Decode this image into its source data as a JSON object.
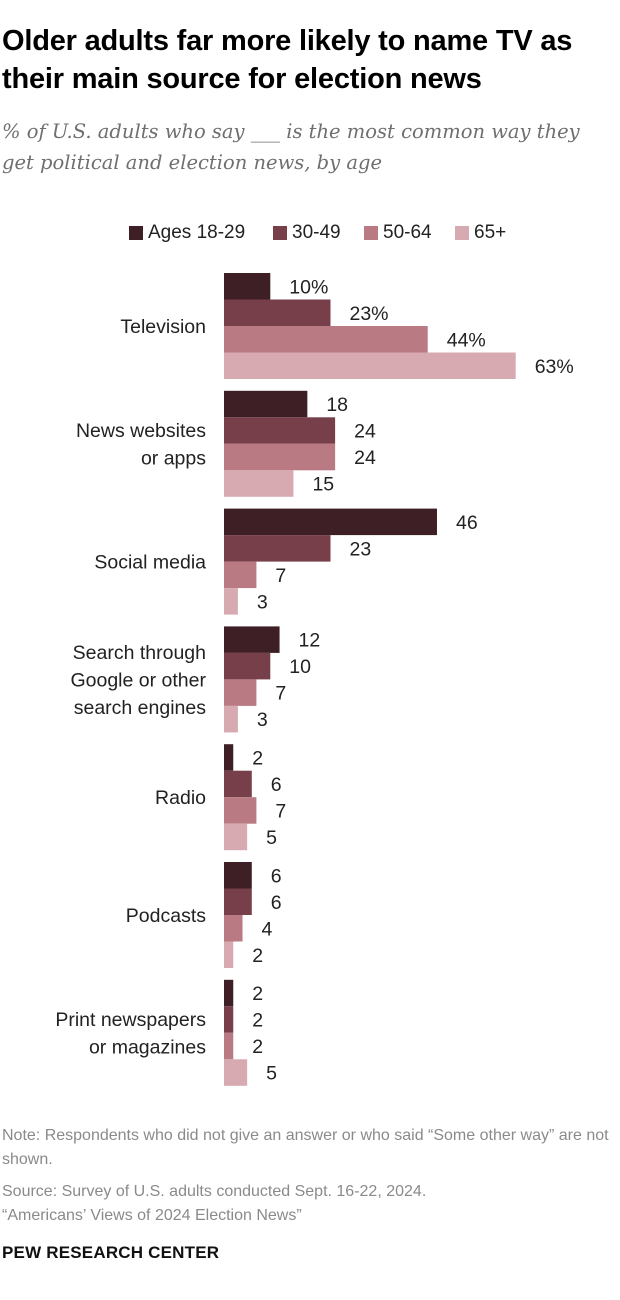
{
  "title": "Older adults far more likely to name TV as their main source for election news",
  "subtitle": "% of U.S. adults who say ___ is the most common way they get political and election news, by age",
  "note": "Note: Respondents who did not give an answer or who said “Some other way” are not shown.",
  "source_lines": [
    "Source: Survey of U.S. adults conducted Sept. 16-22, 2024.",
    "“Americans’ Views of 2024 Election News”"
  ],
  "brand": "PEW RESEARCH CENTER",
  "chart_data": {
    "type": "bar",
    "orientation": "horizontal",
    "categories": [
      [
        "Television"
      ],
      [
        "News websites",
        "or apps"
      ],
      [
        "Social media"
      ],
      [
        "Search through",
        "Google or other",
        "search engines"
      ],
      [
        "Radio"
      ],
      [
        "Podcasts"
      ],
      [
        "Print newspapers",
        "or magazines"
      ]
    ],
    "series": [
      {
        "name": "Ages 18-29",
        "color": "#3e1f25",
        "values": [
          10,
          18,
          46,
          12,
          2,
          6,
          2
        ]
      },
      {
        "name": "30-49",
        "color": "#773f49",
        "values": [
          23,
          24,
          23,
          10,
          6,
          6,
          2
        ]
      },
      {
        "name": "50-64",
        "color": "#b97a84",
        "values": [
          44,
          24,
          7,
          7,
          7,
          4,
          2
        ]
      },
      {
        "name": "65+",
        "color": "#d7a9b0",
        "values": [
          63,
          15,
          3,
          3,
          5,
          2,
          5
        ]
      }
    ],
    "value_labels": [
      [
        "10%",
        "23%",
        "44%",
        "63%"
      ],
      [
        "18",
        "24",
        "24",
        "15"
      ],
      [
        "46",
        "23",
        "7",
        "3"
      ],
      [
        "12",
        "10",
        "7",
        "3"
      ],
      [
        "2",
        "6",
        "7",
        "5"
      ],
      [
        "6",
        "6",
        "4",
        "2"
      ],
      [
        "2",
        "2",
        "2",
        "5"
      ]
    ],
    "legend_position": "top",
    "grid": false
  }
}
